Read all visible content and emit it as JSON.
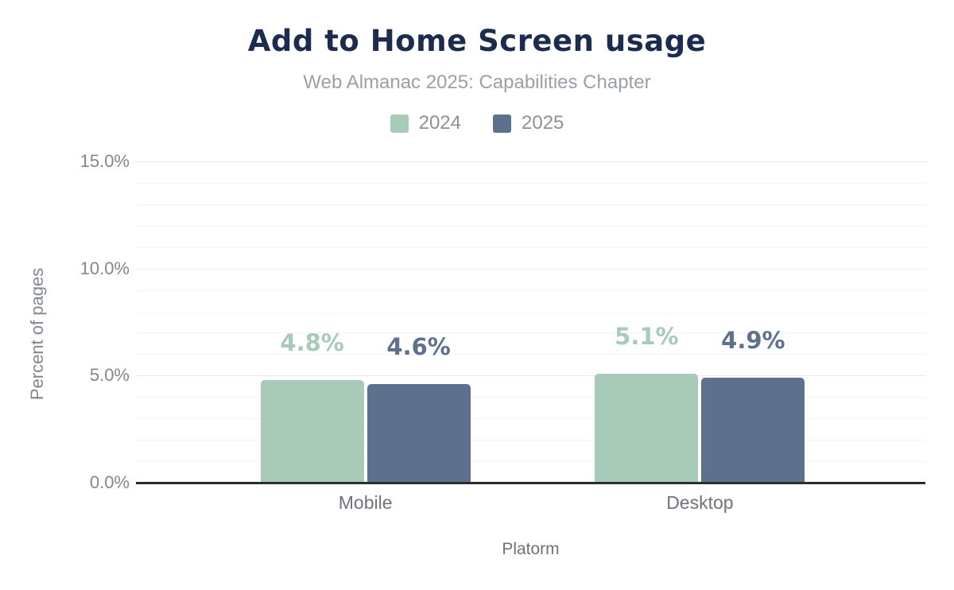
{
  "chart": {
    "title": "Add to Home Screen usage",
    "subtitle": "Web Almanac 2025: Capabilities Chapter",
    "ylabel": "Percent of pages",
    "xlabel": "Platorm"
  },
  "chart_data": {
    "type": "bar",
    "title": "Add to Home Screen usage",
    "subtitle": "Web Almanac 2025: Capabilities Chapter",
    "categories": [
      "Mobile",
      "Desktop"
    ],
    "series": [
      {
        "name": "2024",
        "color": "#a8cab8",
        "values": [
          4.8,
          5.1
        ],
        "value_labels": [
          "4.8%",
          "5.1%"
        ]
      },
      {
        "name": "2025",
        "color": "#5d708e",
        "values": [
          4.6,
          4.9
        ],
        "value_labels": [
          "4.6%",
          "4.9%"
        ]
      }
    ],
    "xlabel": "Platorm",
    "ylabel": "Percent of pages",
    "ylim": [
      0,
      15
    ],
    "yticks": [
      {
        "value": 0,
        "label": "0.0%"
      },
      {
        "value": 5,
        "label": "5.0%"
      },
      {
        "value": 10,
        "label": "10.0%"
      },
      {
        "value": 15,
        "label": "15.0%"
      }
    ],
    "grid": {
      "on": true,
      "minor_step": 1,
      "major_step": 5,
      "minor_color": "#f4f4f4",
      "major_color": "#e9e9e9"
    },
    "legend_position": "top",
    "style": {
      "title_color": "#1b2c4e",
      "subtitle_color": "#9aa0a8",
      "legend_text_color": "#8b9199",
      "tick_label_color": "#82878f",
      "category_label_color": "#6e737b",
      "axis_line_color": "#2d2d2d",
      "background": "#ffffff"
    }
  }
}
